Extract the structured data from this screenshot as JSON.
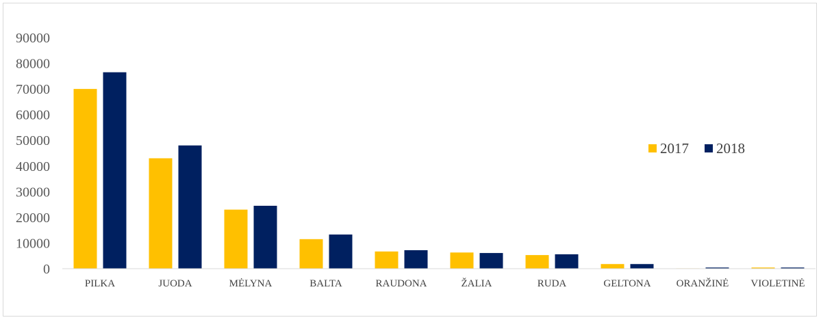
{
  "chart_data": {
    "type": "bar",
    "title": "",
    "xlabel": "",
    "ylabel": "",
    "categories": [
      "PILKA",
      "JUODA",
      "MĖLYNA",
      "BALTA",
      "RAUDONA",
      "ŽALIA",
      "RUDA",
      "GELTONA",
      "ORANŽINĖ",
      "VIOLETINĖ"
    ],
    "series": [
      {
        "name": "2017",
        "color": "#FFC000",
        "values": [
          70000,
          43000,
          23000,
          11500,
          6700,
          6300,
          5300,
          1800,
          150,
          450
        ]
      },
      {
        "name": "2018",
        "color": "#002060",
        "values": [
          76500,
          48000,
          24500,
          13300,
          7200,
          6100,
          5600,
          1800,
          450,
          450
        ]
      }
    ],
    "ylim": [
      0,
      90000
    ],
    "yticks": [
      "0",
      "10000",
      "20000",
      "30000",
      "40000",
      "50000",
      "60000",
      "70000",
      "80000",
      "90000"
    ],
    "grid": false,
    "legend_position": "right"
  }
}
